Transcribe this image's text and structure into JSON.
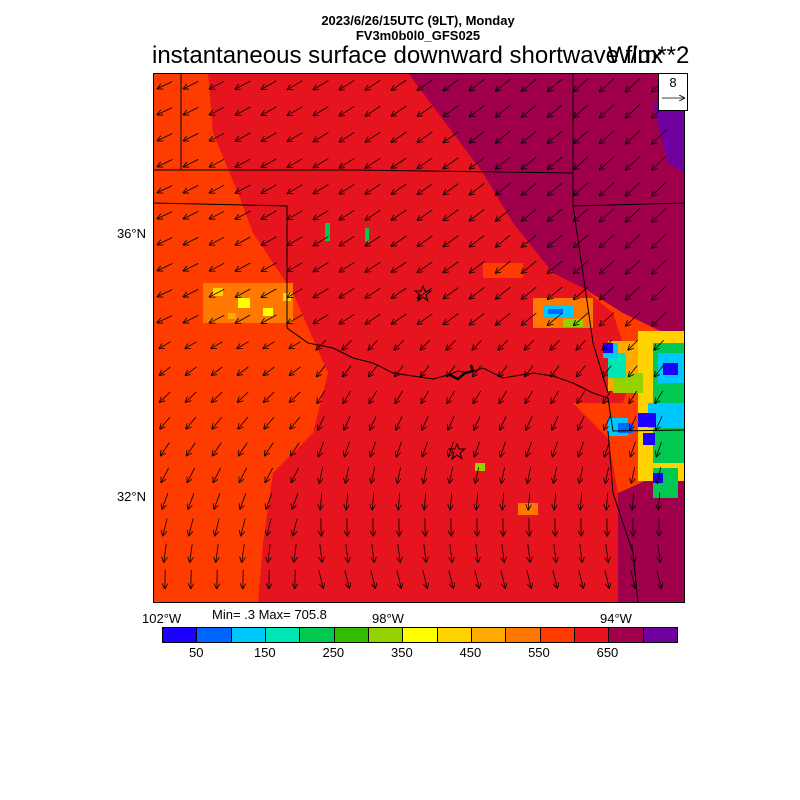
{
  "header": {
    "line1": "2023/6/26/15UTC (9LT), Monday",
    "line2": "FV3m0b0l0_GFS025",
    "title": "instantaneous surface downward shortwave flux",
    "units": "W/m**2"
  },
  "reference_vector": {
    "value": "8"
  },
  "axes": {
    "lat_labels": [
      "36°N",
      "32°N"
    ],
    "lon_labels": [
      "102°W",
      "98°W",
      "94°W"
    ]
  },
  "stats": {
    "text": "Min= .3 Max= 705.8"
  },
  "colorbar": {
    "colors": [
      "#1c00ff",
      "#0064ff",
      "#00c8ff",
      "#00e6b4",
      "#00c850",
      "#32be00",
      "#96d200",
      "#ffff00",
      "#ffd200",
      "#ffaa00",
      "#ff7800",
      "#ff3c00",
      "#e6141e",
      "#a0004b",
      "#6e00a0"
    ],
    "labels": [
      "50",
      "150",
      "250",
      "350",
      "450",
      "550",
      "650"
    ]
  },
  "field_colors": {
    "west": "#ff3c00",
    "central": "#e6141e",
    "east": "#a0004b",
    "deep": "#6e00a0"
  }
}
